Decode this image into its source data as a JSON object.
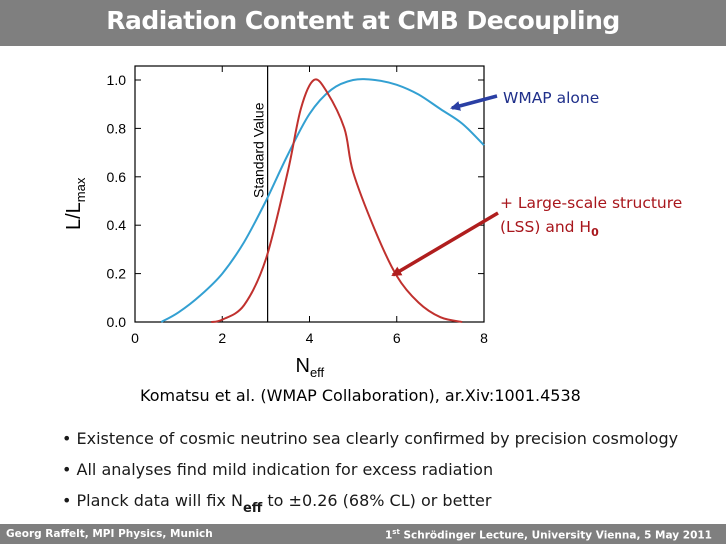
{
  "slide": {
    "title": "Radiation Content at CMB Decoupling",
    "citation": "Komatsu et al. (WMAP Collaboration),  ar.Xiv:1001.4538",
    "annotations": {
      "wmap": "WMAP alone",
      "lss_line1": "+ Large-scale structure",
      "lss_line2": "(LSS) and H",
      "lss_sub": "0"
    },
    "bullets": [
      "• Existence of cosmic neutrino sea clearly confirmed by precision cosmology",
      "• All analyses find mild indication for excess radiation"
    ],
    "bullet3": {
      "prefix": "• Planck data will fix  N",
      "sub": "eff",
      "suffix": "  to  ±0.26 (68% CL) or better"
    },
    "footer": {
      "left": "Georg Raffelt, MPI Physics, Munich",
      "right_sup": "st",
      "right_num": "1",
      "right_text": " Schrödinger Lecture, University Vienna, 5 May 2011"
    }
  },
  "colors": {
    "wmap": "#33a0d2",
    "lss": "#c0312e",
    "wmap_arrow": "#2a3fa4",
    "lss_arrow": "#b01e1e"
  },
  "chart_data": {
    "type": "line",
    "xlabel": "N",
    "xlabel_sub": "eff",
    "ylabel": "L/L",
    "ylabel_sub": "max",
    "xlim": [
      0,
      8
    ],
    "ylim": [
      0.0,
      1.05
    ],
    "x_ticks": [
      "0",
      "2",
      "4",
      "6",
      "8"
    ],
    "y_ticks": [
      "0.0",
      "0.2",
      "0.4",
      "0.6",
      "0.8",
      "1.0"
    ],
    "reference_line": {
      "x": 3.04,
      "label": "Standard Value"
    },
    "series": [
      {
        "name": "WMAP alone",
        "x": [
          0.6,
          1.0,
          1.5,
          2.0,
          2.5,
          3.0,
          3.5,
          4.0,
          4.5,
          5.0,
          5.5,
          6.0,
          6.5,
          7.0,
          7.5,
          8.0
        ],
        "y": [
          0.0,
          0.04,
          0.11,
          0.2,
          0.33,
          0.5,
          0.69,
          0.86,
          0.96,
          1.0,
          1.0,
          0.98,
          0.94,
          0.88,
          0.82,
          0.73
        ]
      },
      {
        "name": "+ Large-scale structure (LSS) and H0",
        "x": [
          1.75,
          2.0,
          2.5,
          3.0,
          3.5,
          3.8,
          4.1,
          4.4,
          4.8,
          5.0,
          5.5,
          6.0,
          6.5,
          7.0,
          7.5
        ],
        "y": [
          0.0,
          0.01,
          0.07,
          0.26,
          0.62,
          0.88,
          1.0,
          0.95,
          0.8,
          0.62,
          0.38,
          0.19,
          0.08,
          0.02,
          0.0
        ]
      }
    ]
  }
}
